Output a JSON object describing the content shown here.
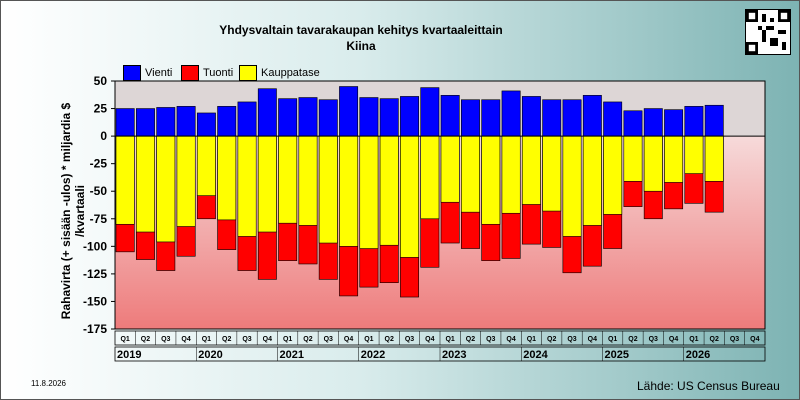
{
  "chart_data": {
    "type": "bar",
    "title": "Yhdysvaltain tavarakaupan kehitys kvartaaleittain",
    "subtitle": "Kiina",
    "ylabel": "Rahavirta (+ sisään -ulos)  * miljardia $ /kvartaali",
    "ylim": [
      -175,
      50
    ],
    "yticks": [
      50,
      25,
      0,
      -25,
      -50,
      -75,
      -100,
      -125,
      -150,
      -175
    ],
    "grid": false,
    "legend_position": "top-left",
    "colors": {
      "Vienti": "#0000ff",
      "Tuonti": "#ff0000",
      "Kauppatase": "#ffff00"
    },
    "categories": [
      "Q1",
      "Q2",
      "Q3",
      "Q4",
      "Q1",
      "Q2",
      "Q3",
      "Q4",
      "Q1",
      "Q2",
      "Q3",
      "Q4",
      "Q1",
      "Q2",
      "Q3",
      "Q4",
      "Q1",
      "Q2",
      "Q3",
      "Q4",
      "Q1",
      "Q2",
      "Q3",
      "Q4",
      "Q1",
      "Q2",
      "Q3",
      "Q4",
      "Q1",
      "Q2",
      "Q3",
      "Q4"
    ],
    "years": [
      "2019",
      "2020",
      "2021",
      "2022",
      "2023",
      "2024",
      "2025",
      "2026"
    ],
    "series": [
      {
        "name": "Vienti",
        "values": [
          25,
          25,
          26,
          27,
          21,
          27,
          31,
          43,
          34,
          35,
          33,
          45,
          35,
          34,
          36,
          44,
          37,
          33,
          33,
          41,
          36,
          33,
          33,
          37,
          31,
          23,
          25,
          24,
          27,
          28,
          null,
          null
        ]
      },
      {
        "name": "Tuonti",
        "values": [
          -105,
          -112,
          -122,
          -109,
          -75,
          -103,
          -122,
          -130,
          -113,
          -116,
          -130,
          -145,
          -137,
          -133,
          -146,
          -119,
          -97,
          -102,
          -113,
          -111,
          -98,
          -101,
          -124,
          -118,
          -102,
          -64,
          -75,
          -66,
          -61,
          -69,
          null,
          null
        ]
      },
      {
        "name": "Kauppatase",
        "values": [
          -80,
          -87,
          -96,
          -82,
          -54,
          -76,
          -91,
          -87,
          -79,
          -81,
          -97,
          -100,
          -102,
          -99,
          -110,
          -75,
          -60,
          -69,
          -80,
          -70,
          -62,
          -68,
          -91,
          -81,
          -71,
          -41,
          -50,
          -42,
          -34,
          -41,
          null,
          null
        ]
      }
    ]
  },
  "footer": {
    "date": "11.8.2026",
    "source": "Lähde: US Census Bureau"
  }
}
